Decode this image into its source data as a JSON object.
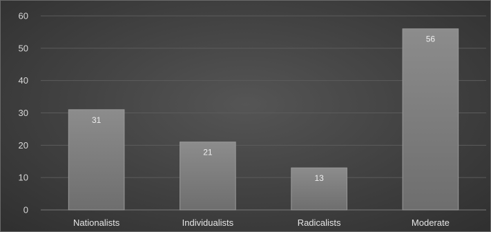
{
  "chart_data": {
    "type": "bar",
    "categories": [
      "Nationalists",
      "Individualists",
      "Radicalists",
      "Moderate"
    ],
    "values": [
      31,
      21,
      13,
      56
    ],
    "ylim": [
      0,
      60
    ],
    "yticks": [
      0,
      10,
      20,
      30,
      40,
      50,
      60
    ],
    "title": "",
    "xlabel": "",
    "ylabel": "",
    "grid": true,
    "legend": "none",
    "colors": {
      "bar_top": "#8c8c8c",
      "bar_bottom": "#6e6e6e",
      "bar_edge": "#9a9a9a",
      "grid": "#5c5c5c",
      "text": "#d9d9d9"
    }
  }
}
